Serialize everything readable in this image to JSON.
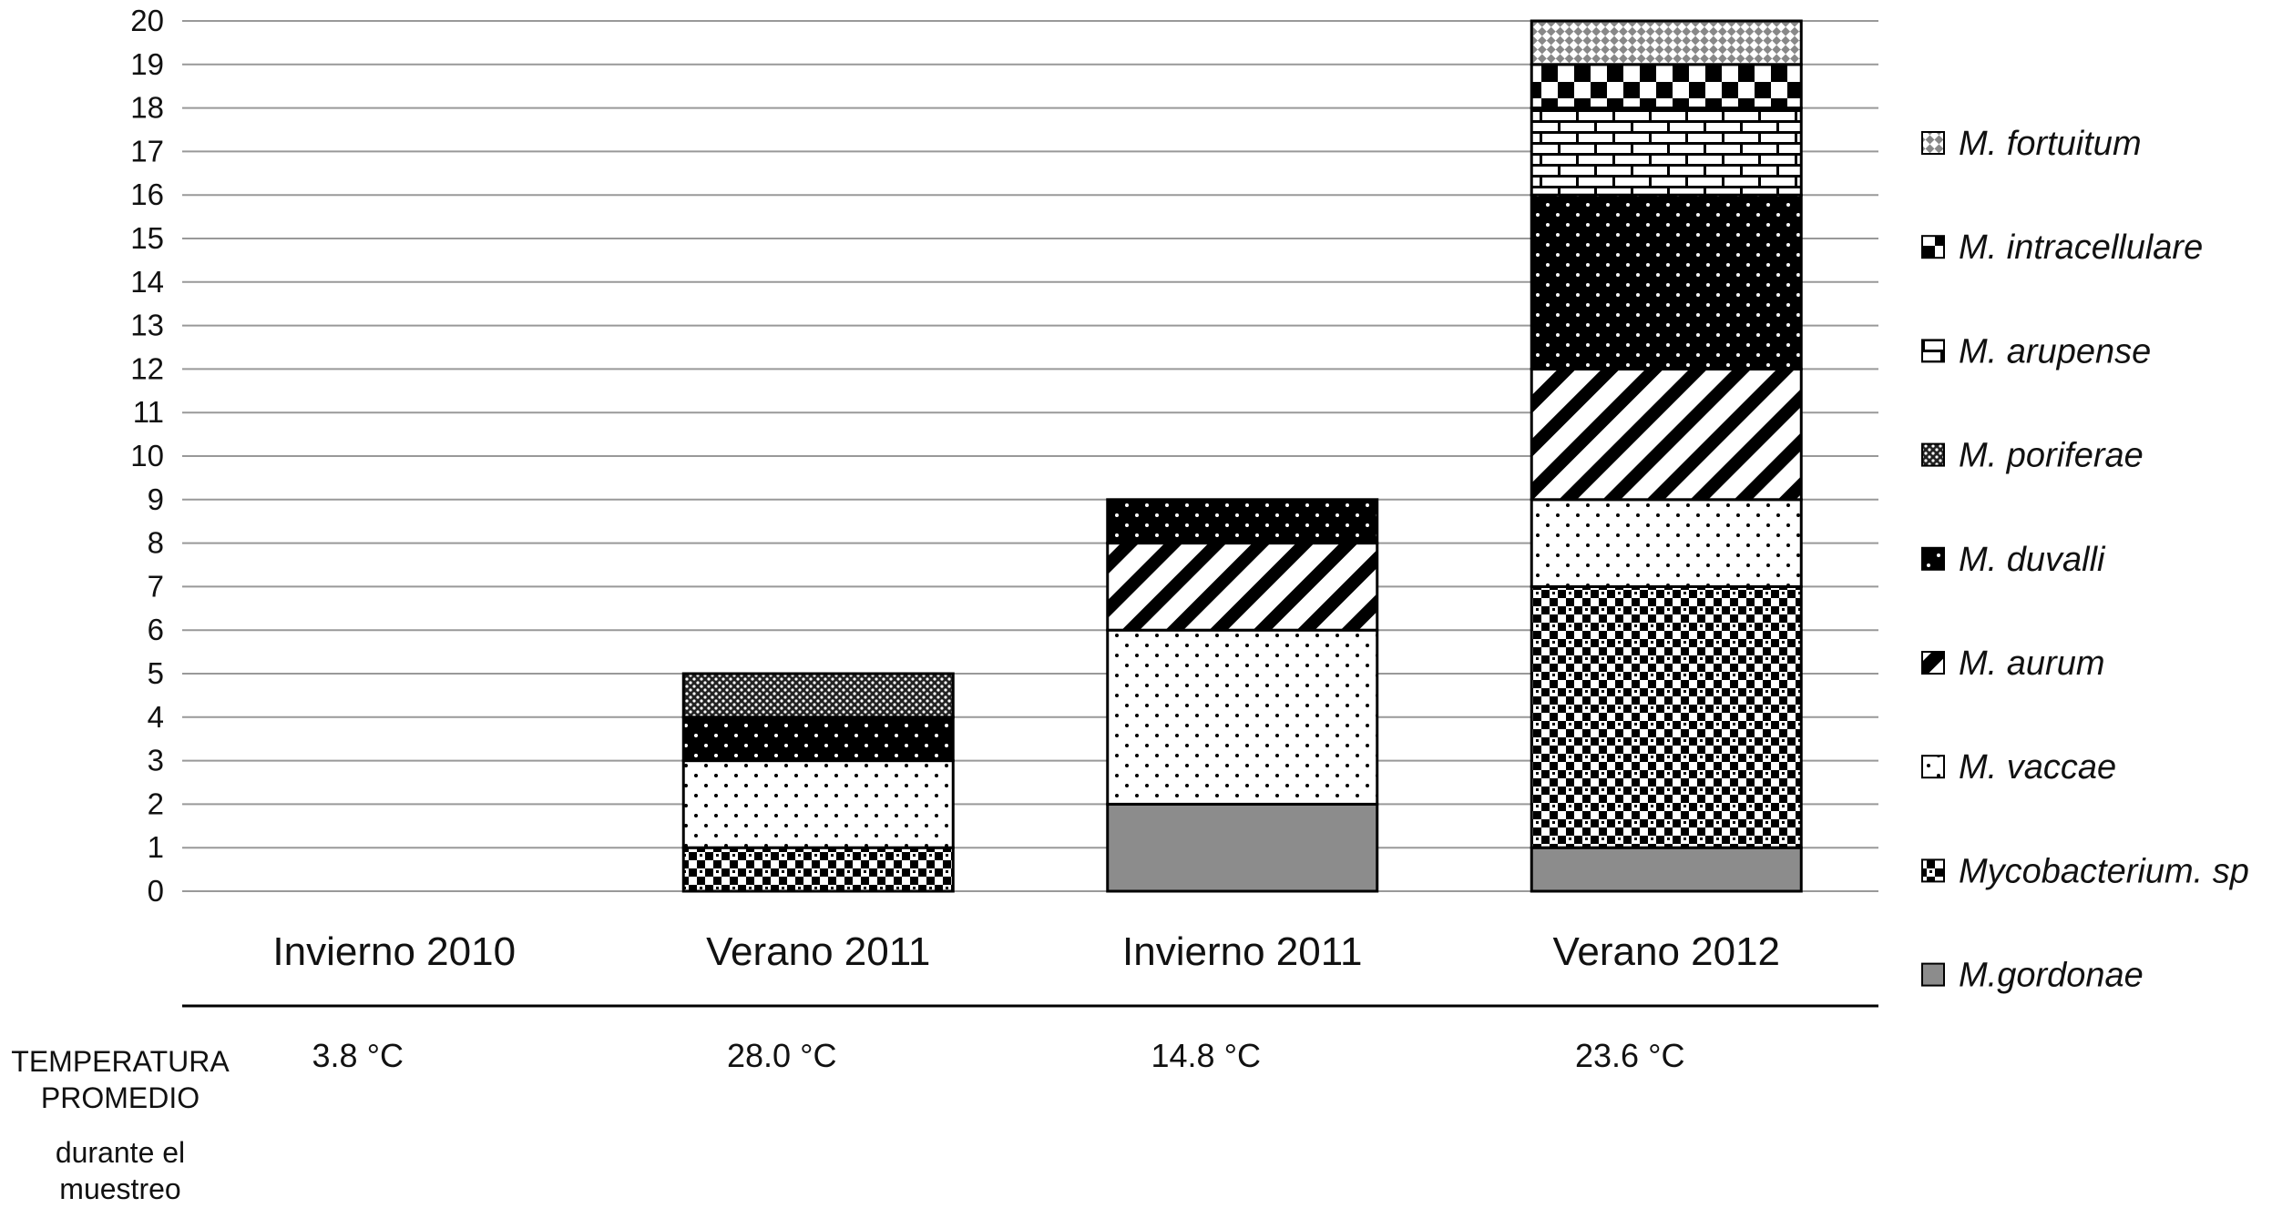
{
  "chart_data": {
    "type": "bar",
    "stacked": true,
    "categories": [
      "Invierno 2010",
      "Verano 2011",
      "Invierno 2011",
      "Verano 2012"
    ],
    "ylim": [
      0,
      20
    ],
    "yticks": [
      "0",
      "1",
      "2",
      "3",
      "4",
      "5",
      "6",
      "7",
      "8",
      "9",
      "10",
      "11",
      "12",
      "13",
      "14",
      "15",
      "16",
      "17",
      "18",
      "19",
      "20"
    ],
    "grid": true,
    "legend_position": "right",
    "series": [
      {
        "name": "M.gordonae",
        "pattern": "gray",
        "values": [
          0,
          0,
          2,
          1
        ]
      },
      {
        "name": "Mycobacterium. sp",
        "pattern": "checker",
        "values": [
          0,
          1,
          0,
          6
        ]
      },
      {
        "name": "M. vaccae",
        "pattern": "dots",
        "values": [
          0,
          2,
          4,
          2
        ]
      },
      {
        "name": "M. aurum",
        "pattern": "diag",
        "values": [
          0,
          0,
          2,
          3
        ]
      },
      {
        "name": "M. duvalli",
        "pattern": "darkdots",
        "values": [
          0,
          1,
          1,
          4
        ]
      },
      {
        "name": "M. poriferae",
        "pattern": "densedots",
        "values": [
          0,
          1,
          0,
          0
        ]
      },
      {
        "name": "M. arupense",
        "pattern": "brick",
        "values": [
          0,
          0,
          0,
          2
        ]
      },
      {
        "name": "M. intracellulare",
        "pattern": "bigchecker",
        "values": [
          0,
          0,
          0,
          1
        ]
      },
      {
        "name": "M. fortuitum",
        "pattern": "diamond",
        "values": [
          0,
          0,
          0,
          1
        ]
      }
    ],
    "row_label_lines": [
      "TEMPERATURA",
      "PROMEDIO",
      "durante el",
      "muestreo"
    ],
    "temperatures": [
      "3.8 °C",
      "28.0 °C",
      "14.8 °C",
      "23.6 °C"
    ]
  }
}
